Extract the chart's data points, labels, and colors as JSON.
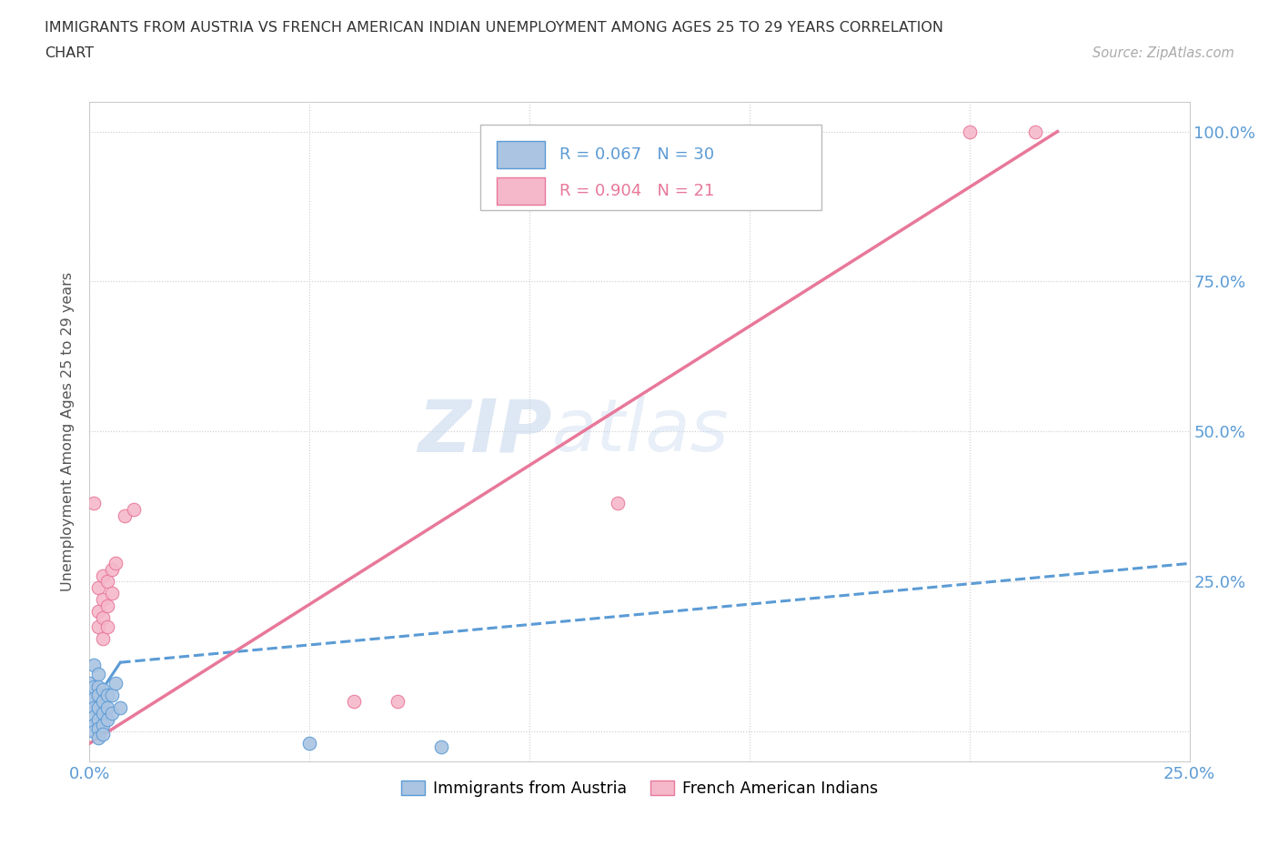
{
  "title_line1": "IMMIGRANTS FROM AUSTRIA VS FRENCH AMERICAN INDIAN UNEMPLOYMENT AMONG AGES 25 TO 29 YEARS CORRELATION",
  "title_line2": "CHART",
  "source": "Source: ZipAtlas.com",
  "ylabel": "Unemployment Among Ages 25 to 29 years",
  "xlim": [
    0.0,
    0.25
  ],
  "ylim": [
    -0.05,
    1.05
  ],
  "xticks": [
    0.0,
    0.05,
    0.1,
    0.15,
    0.2,
    0.25
  ],
  "xticklabels": [
    "0.0%",
    "",
    "",
    "",
    "",
    "25.0%"
  ],
  "yticks": [
    0.0,
    0.25,
    0.5,
    0.75,
    1.0
  ],
  "right_yticklabels": [
    "",
    "25.0%",
    "50.0%",
    "75.0%",
    "100.0%"
  ],
  "austria_color": "#aac4e2",
  "austria_edge": "#5b9bd5",
  "french_color": "#f5b8cb",
  "french_edge": "#e8789a",
  "austria_R": 0.067,
  "austria_N": 30,
  "french_R": 0.904,
  "french_N": 21,
  "trendline_austria_color": "#5b9bd5",
  "trendline_french_color": "#e8789a",
  "watermark_zip": "ZIP",
  "watermark_atlas": "atlas",
  "austria_scatter": [
    [
      0.0,
      0.08
    ],
    [
      0.0,
      0.05
    ],
    [
      0.001,
      0.11
    ],
    [
      0.001,
      0.075
    ],
    [
      0.001,
      0.055
    ],
    [
      0.001,
      0.04
    ],
    [
      0.001,
      0.025
    ],
    [
      0.001,
      0.01
    ],
    [
      0.001,
      0.0
    ],
    [
      0.002,
      0.095
    ],
    [
      0.002,
      0.075
    ],
    [
      0.002,
      0.06
    ],
    [
      0.002,
      0.04
    ],
    [
      0.002,
      0.02
    ],
    [
      0.002,
      0.005
    ],
    [
      0.002,
      -0.01
    ],
    [
      0.003,
      0.07
    ],
    [
      0.003,
      0.05
    ],
    [
      0.003,
      0.03
    ],
    [
      0.003,
      0.01
    ],
    [
      0.003,
      -0.005
    ],
    [
      0.004,
      0.06
    ],
    [
      0.004,
      0.04
    ],
    [
      0.004,
      0.02
    ],
    [
      0.005,
      0.06
    ],
    [
      0.005,
      0.03
    ],
    [
      0.006,
      0.08
    ],
    [
      0.007,
      0.04
    ],
    [
      0.05,
      -0.02
    ],
    [
      0.08,
      -0.025
    ]
  ],
  "french_scatter": [
    [
      0.001,
      0.38
    ],
    [
      0.002,
      0.24
    ],
    [
      0.002,
      0.2
    ],
    [
      0.002,
      0.175
    ],
    [
      0.003,
      0.26
    ],
    [
      0.003,
      0.22
    ],
    [
      0.003,
      0.19
    ],
    [
      0.003,
      0.155
    ],
    [
      0.004,
      0.25
    ],
    [
      0.004,
      0.21
    ],
    [
      0.004,
      0.175
    ],
    [
      0.005,
      0.27
    ],
    [
      0.005,
      0.23
    ],
    [
      0.006,
      0.28
    ],
    [
      0.008,
      0.36
    ],
    [
      0.01,
      0.37
    ],
    [
      0.06,
      0.05
    ],
    [
      0.07,
      0.05
    ],
    [
      0.12,
      0.38
    ],
    [
      0.2,
      1.0
    ],
    [
      0.215,
      1.0
    ]
  ],
  "austria_trendline_x": [
    0.0,
    0.006,
    0.25
  ],
  "austria_trendline_y": [
    0.04,
    0.12,
    0.28
  ],
  "french_trendline_x": [
    0.0,
    0.22
  ],
  "french_trendline_y": [
    -0.02,
    1.0
  ]
}
